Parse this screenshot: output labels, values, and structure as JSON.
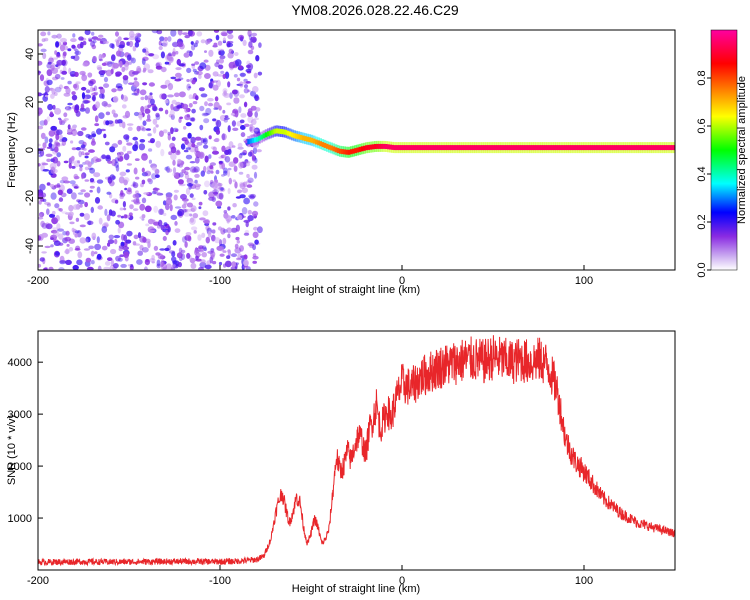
{
  "title": "YM08.2026.028.22.46.C29",
  "chart_data": [
    {
      "type": "heatmap",
      "xlabel": "Height of straight line (km)",
      "ylabel": "Frequency (Hz)",
      "xlim": [
        -200,
        150
      ],
      "ylim": [
        -50,
        50
      ],
      "x_ticks": [
        -200,
        -100,
        0,
        100
      ],
      "y_ticks": [
        -40,
        -20,
        0,
        20,
        40
      ],
      "colorbar": {
        "label": "Normalized spectral amplitude",
        "range": [
          0.0,
          1.0
        ],
        "ticks": [
          0.0,
          0.2,
          0.4,
          0.6,
          0.8
        ],
        "tick_labels": [
          "0.0",
          "0.2",
          "0.4",
          "0.6",
          "0.8"
        ],
        "colors": [
          "#ffffff",
          "#8a2be2",
          "#0000ff",
          "#00ffff",
          "#00ff00",
          "#ffff00",
          "#ff8000",
          "#ff0000",
          "#ff00a0"
        ]
      },
      "noise_region": {
        "x": [
          -200,
          -78
        ],
        "freq": [
          -50,
          50
        ],
        "amplitude": 0.15
      },
      "signal_track": {
        "x": [
          -85,
          -80,
          -75,
          -70,
          -65,
          -60,
          -55,
          -50,
          -45,
          -40,
          -35,
          -30,
          -25,
          -20,
          -15,
          -10,
          -5,
          0,
          10,
          20,
          40,
          60,
          80,
          100,
          120,
          150
        ],
        "freq": [
          3.5,
          4.5,
          6.5,
          8,
          7.5,
          6,
          5,
          4,
          2.5,
          1,
          -0.5,
          -1,
          0,
          1,
          1.5,
          1.5,
          1,
          1,
          1,
          1,
          1,
          1,
          1,
          1,
          1,
          1
        ],
        "amplitude": [
          0.3,
          0.4,
          0.5,
          0.6,
          0.6,
          0.65,
          0.7,
          0.7,
          0.75,
          0.75,
          0.8,
          0.85,
          0.85,
          0.9,
          0.9,
          0.95,
          0.95,
          0.95,
          0.95,
          0.95,
          0.95,
          0.95,
          0.95,
          0.95,
          0.95,
          0.95
        ]
      }
    },
    {
      "type": "line",
      "xlabel": "Height of straight line (km)",
      "ylabel": "SNR (10 * v/v)",
      "xlim": [
        -200,
        150
      ],
      "ylim": [
        0,
        4600
      ],
      "x_ticks": [
        -200,
        -100,
        0,
        100
      ],
      "y_ticks": [
        1000,
        2000,
        3000,
        4000
      ],
      "series": [
        {
          "color": "#e8262a",
          "x": [
            -200,
            -180,
            -160,
            -140,
            -120,
            -100,
            -90,
            -80,
            -76,
            -72,
            -70,
            -68,
            -66,
            -64,
            -62,
            -60,
            -58,
            -56,
            -54,
            -52,
            -50,
            -48,
            -46,
            -44,
            -42,
            -40,
            -38,
            -36,
            -34,
            -32,
            -30,
            -28,
            -26,
            -24,
            -22,
            -20,
            -18,
            -16,
            -14,
            -12,
            -10,
            -8,
            -6,
            -4,
            -2,
            0,
            5,
            10,
            15,
            20,
            25,
            30,
            35,
            40,
            45,
            50,
            55,
            60,
            65,
            70,
            75,
            80,
            85,
            90,
            95,
            100,
            110,
            120,
            130,
            140,
            150
          ],
          "y": [
            150,
            160,
            155,
            160,
            165,
            160,
            170,
            200,
            260,
            600,
            1000,
            1300,
            1500,
            1200,
            900,
            1100,
            1400,
            1300,
            800,
            500,
            700,
            1000,
            800,
            500,
            600,
            800,
            1500,
            2200,
            1900,
            2000,
            2300,
            2100,
            2400,
            2600,
            2500,
            2200,
            2700,
            2900,
            3200,
            2700,
            2900,
            3100,
            2900,
            3200,
            3400,
            3600,
            3500,
            3700,
            3800,
            3900,
            3950,
            4000,
            4050,
            4050,
            4000,
            4100,
            4050,
            4000,
            4050,
            4000,
            4050,
            3950,
            3500,
            2500,
            2100,
            1900,
            1400,
            1100,
            900,
            800,
            700
          ]
        }
      ]
    }
  ]
}
